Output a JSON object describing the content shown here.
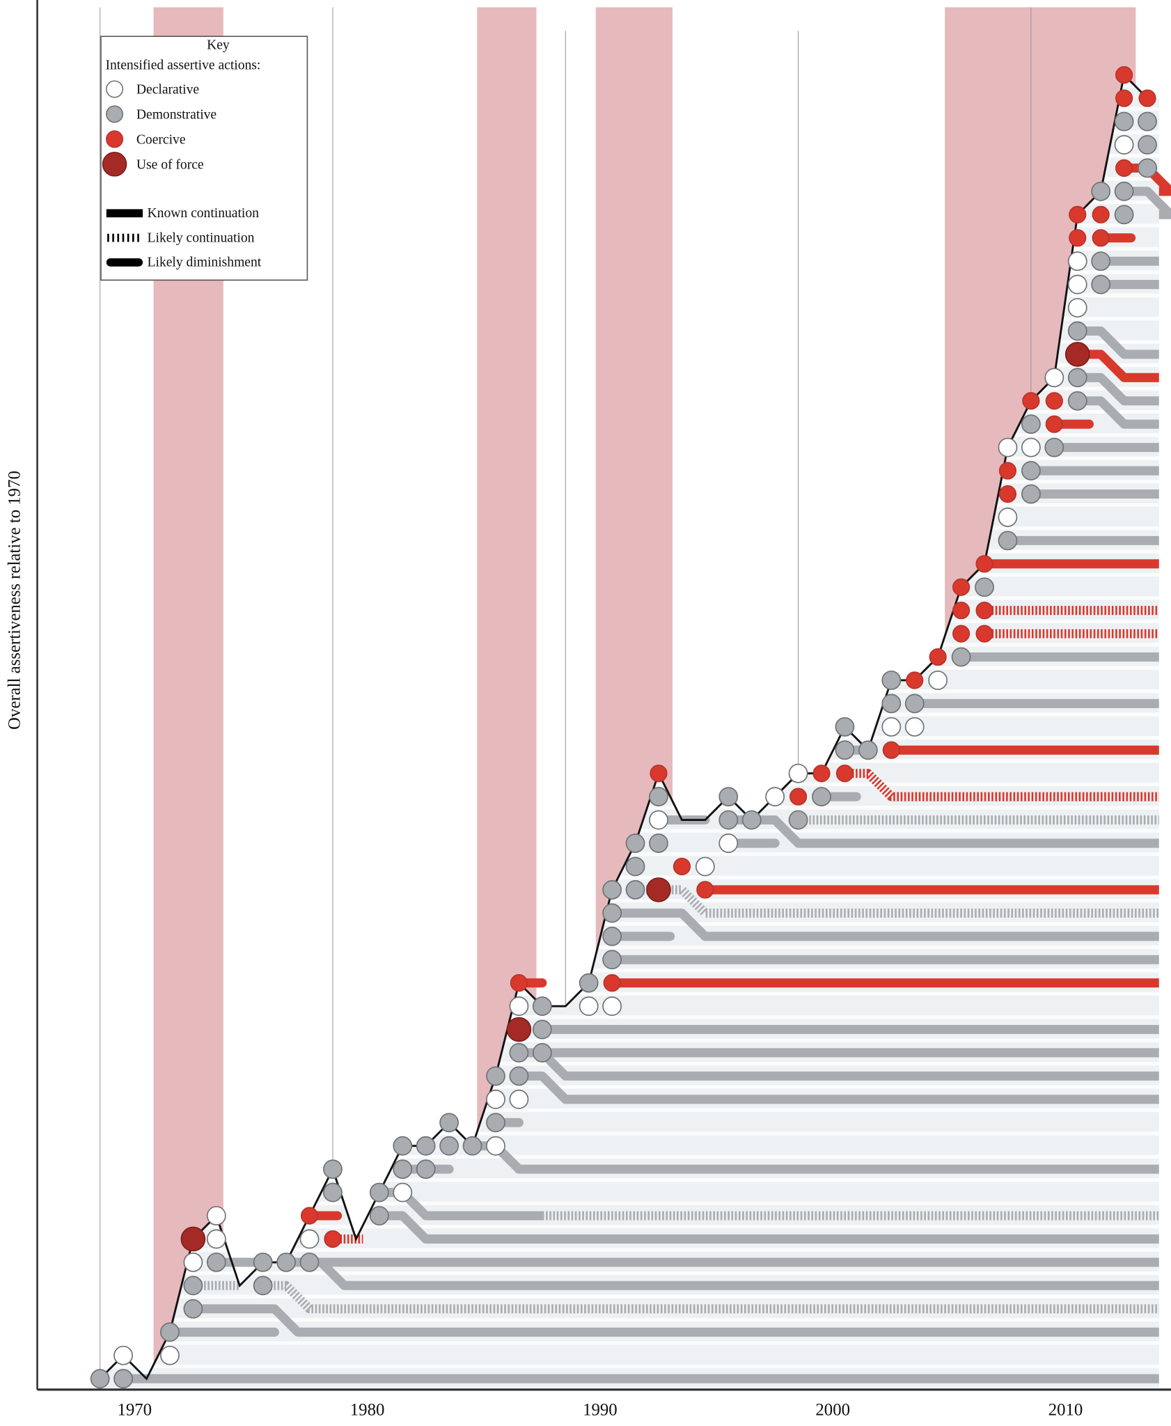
{
  "chart_data": {
    "type": "scatter",
    "title": "",
    "xlabel": "",
    "ylabel": "Overall assertiveness relative to 1970",
    "x_ticks": [
      1970,
      1980,
      1990,
      2000,
      2010
    ],
    "xlim": [
      1968.7,
      2015.6
    ],
    "ylim": [
      -0.5,
      57
    ],
    "shaded_periods": [
      [
        1972.3,
        1975.3
      ],
      [
        1986.2,
        1988.75
      ],
      [
        1991.3,
        1994.6
      ],
      [
        2006.3,
        2014.5
      ]
    ],
    "colors": {
      "shade": "#e6b9bc",
      "declarative": "#ffffff",
      "demonstrative": "#a9adb1",
      "coercive": "#d9392d",
      "force": "#a52a26",
      "area": "#eef1f3",
      "line": "#111111"
    },
    "legend": {
      "position": "top-left",
      "title": "Key",
      "subtitle": "Intensified assertive actions:",
      "markers": [
        {
          "type": "w",
          "label": "Declarative"
        },
        {
          "type": "g",
          "label": "Demonstrative"
        },
        {
          "type": "r",
          "label": "Coercive"
        },
        {
          "type": "f",
          "label": "Use of force"
        }
      ],
      "lines": [
        {
          "style": "k",
          "label": "Known continuation"
        },
        {
          "style": "l",
          "label": "Likely continuation"
        },
        {
          "style": "d",
          "label": "Likely diminishment"
        }
      ]
    },
    "line": [
      [
        1970,
        0
      ],
      [
        1971,
        1
      ],
      [
        1972,
        0
      ],
      [
        1973,
        2
      ],
      [
        1974,
        6
      ],
      [
        1975,
        7
      ],
      [
        1976,
        4
      ],
      [
        1977,
        5
      ],
      [
        1978,
        5
      ],
      [
        1979,
        7
      ],
      [
        1980,
        9
      ],
      [
        1981,
        6
      ],
      [
        1982,
        8
      ],
      [
        1983,
        10
      ],
      [
        1984,
        10
      ],
      [
        1985,
        11
      ],
      [
        1986,
        10
      ],
      [
        1987,
        13
      ],
      [
        1988,
        17
      ],
      [
        1989,
        16
      ],
      [
        1990,
        16
      ],
      [
        1991,
        17
      ],
      [
        1992,
        21
      ],
      [
        1993,
        23
      ],
      [
        1994,
        26
      ],
      [
        1995,
        24
      ],
      [
        1996,
        24
      ],
      [
        1997,
        25
      ],
      [
        1998,
        24
      ],
      [
        1999,
        25
      ],
      [
        2000,
        26
      ],
      [
        2001,
        26
      ],
      [
        2002,
        28
      ],
      [
        2003,
        27
      ],
      [
        2004,
        30
      ],
      [
        2005,
        30
      ],
      [
        2006,
        31
      ],
      [
        2007,
        34
      ],
      [
        2008,
        35
      ],
      [
        2009,
        40
      ],
      [
        2010,
        42
      ],
      [
        2011,
        43
      ],
      [
        2012,
        50
      ],
      [
        2013,
        51
      ],
      [
        2014,
        56
      ],
      [
        2015,
        55
      ]
    ],
    "events": [
      {
        "year": 1970,
        "dots": [
          [
            0,
            "g"
          ]
        ]
      },
      {
        "year": 1971,
        "dots": [
          [
            1,
            "w"
          ],
          [
            0,
            "g"
          ]
        ]
      },
      {
        "year": 1973,
        "dots": [
          [
            2,
            "g"
          ],
          [
            1,
            "w"
          ]
        ]
      },
      {
        "year": 1974,
        "dots": [
          [
            6,
            "f"
          ],
          [
            5,
            "w"
          ],
          [
            4,
            "g"
          ],
          [
            3,
            "g"
          ]
        ]
      },
      {
        "year": 1975,
        "dots": [
          [
            7,
            "w"
          ],
          [
            6,
            "w"
          ],
          [
            5,
            "g"
          ]
        ]
      },
      {
        "year": 1977,
        "dots": [
          [
            5,
            "g"
          ],
          [
            4,
            "g"
          ]
        ]
      },
      {
        "year": 1978,
        "dots": [
          [
            5,
            "g"
          ]
        ]
      },
      {
        "year": 1979,
        "dots": [
          [
            7,
            "r"
          ],
          [
            6,
            "w"
          ],
          [
            5,
            "g"
          ]
        ]
      },
      {
        "year": 1980,
        "dots": [
          [
            9,
            "g"
          ],
          [
            8,
            "g"
          ],
          [
            6,
            "r"
          ]
        ]
      },
      {
        "year": 1982,
        "dots": [
          [
            8,
            "g"
          ],
          [
            7,
            "g"
          ]
        ]
      },
      {
        "year": 1983,
        "dots": [
          [
            10,
            "g"
          ],
          [
            9,
            "g"
          ],
          [
            8,
            "w"
          ]
        ]
      },
      {
        "year": 1984,
        "dots": [
          [
            10,
            "g"
          ],
          [
            9,
            "g"
          ]
        ]
      },
      {
        "year": 1985,
        "dots": [
          [
            11,
            "g"
          ],
          [
            10,
            "g"
          ]
        ]
      },
      {
        "year": 1986,
        "dots": [
          [
            10,
            "g"
          ]
        ]
      },
      {
        "year": 1987,
        "dots": [
          [
            13,
            "g"
          ],
          [
            12,
            "w"
          ],
          [
            11,
            "g"
          ],
          [
            10,
            "w"
          ]
        ]
      },
      {
        "year": 1988,
        "dots": [
          [
            17,
            "r"
          ],
          [
            16,
            "w"
          ],
          [
            15,
            "f"
          ],
          [
            14,
            "g"
          ],
          [
            13,
            "g"
          ],
          [
            12,
            "w"
          ]
        ]
      },
      {
        "year": 1989,
        "dots": [
          [
            16,
            "g"
          ],
          [
            15,
            "g"
          ],
          [
            14,
            "g"
          ]
        ]
      },
      {
        "year": 1991,
        "dots": [
          [
            17,
            "g"
          ],
          [
            16,
            "w"
          ]
        ]
      },
      {
        "year": 1992,
        "dots": [
          [
            21,
            "g"
          ],
          [
            20,
            "g"
          ],
          [
            19,
            "g"
          ],
          [
            18,
            "g"
          ],
          [
            17,
            "r"
          ],
          [
            16,
            "w"
          ]
        ]
      },
      {
        "year": 1993,
        "dots": [
          [
            23,
            "g"
          ],
          [
            22,
            "g"
          ],
          [
            21,
            "g"
          ]
        ]
      },
      {
        "year": 1994,
        "dots": [
          [
            26,
            "r"
          ],
          [
            25,
            "g"
          ],
          [
            24,
            "w"
          ],
          [
            23,
            "g"
          ],
          [
            21,
            "f"
          ]
        ]
      },
      {
        "year": 1995,
        "dots": [
          [
            22,
            "r"
          ]
        ]
      },
      {
        "year": 1996,
        "dots": [
          [
            22,
            "w"
          ],
          [
            21,
            "r"
          ]
        ]
      },
      {
        "year": 1997,
        "dots": [
          [
            25,
            "g"
          ],
          [
            24,
            "g"
          ],
          [
            23,
            "w"
          ]
        ]
      },
      {
        "year": 1998,
        "dots": [
          [
            24,
            "g"
          ]
        ]
      },
      {
        "year": 1999,
        "dots": [
          [
            25,
            "w"
          ]
        ]
      },
      {
        "year": 2000,
        "dots": [
          [
            26,
            "w"
          ],
          [
            25,
            "r"
          ],
          [
            24,
            "g"
          ]
        ]
      },
      {
        "year": 2001,
        "dots": [
          [
            26,
            "r"
          ],
          [
            25,
            "g"
          ]
        ]
      },
      {
        "year": 2002,
        "dots": [
          [
            28,
            "g"
          ],
          [
            27,
            "g"
          ],
          [
            26,
            "r"
          ]
        ]
      },
      {
        "year": 2003,
        "dots": [
          [
            27,
            "g"
          ]
        ]
      },
      {
        "year": 2004,
        "dots": [
          [
            30,
            "g"
          ],
          [
            29,
            "g"
          ],
          [
            28,
            "w"
          ],
          [
            27,
            "r"
          ]
        ]
      },
      {
        "year": 2005,
        "dots": [
          [
            30,
            "r"
          ],
          [
            29,
            "g"
          ],
          [
            28,
            "w"
          ]
        ]
      },
      {
        "year": 2006,
        "dots": [
          [
            31,
            "r"
          ],
          [
            30,
            "w"
          ]
        ]
      },
      {
        "year": 2007,
        "dots": [
          [
            34,
            "r"
          ],
          [
            33,
            "r"
          ],
          [
            32,
            "r"
          ],
          [
            31,
            "g"
          ]
        ]
      },
      {
        "year": 2008,
        "dots": [
          [
            35,
            "r"
          ],
          [
            34,
            "g"
          ],
          [
            33,
            "r"
          ],
          [
            32,
            "r"
          ]
        ]
      },
      {
        "year": 2009,
        "dots": [
          [
            40,
            "w"
          ],
          [
            39,
            "r"
          ],
          [
            38,
            "r"
          ],
          [
            37,
            "w"
          ],
          [
            36,
            "g"
          ]
        ]
      },
      {
        "year": 2010,
        "dots": [
          [
            42,
            "r"
          ],
          [
            41,
            "g"
          ],
          [
            40,
            "w"
          ],
          [
            39,
            "g"
          ],
          [
            38,
            "g"
          ]
        ]
      },
      {
        "year": 2011,
        "dots": [
          [
            43,
            "w"
          ],
          [
            42,
            "r"
          ],
          [
            41,
            "r"
          ],
          [
            40,
            "g"
          ]
        ]
      },
      {
        "year": 2012,
        "dots": [
          [
            50,
            "r"
          ],
          [
            49,
            "r"
          ],
          [
            48,
            "w"
          ],
          [
            47,
            "w"
          ],
          [
            46,
            "w"
          ],
          [
            45,
            "g"
          ],
          [
            44,
            "f"
          ],
          [
            43,
            "g"
          ],
          [
            42,
            "g"
          ]
        ]
      },
      {
        "year": 2013,
        "dots": [
          [
            51,
            "g"
          ],
          [
            50,
            "r"
          ],
          [
            49,
            "r"
          ],
          [
            48,
            "g"
          ],
          [
            47,
            "g"
          ]
        ]
      },
      {
        "year": 2014,
        "dots": [
          [
            56,
            "r"
          ],
          [
            55,
            "r"
          ],
          [
            54,
            "g"
          ],
          [
            53,
            "w"
          ],
          [
            52,
            "r"
          ],
          [
            51,
            "g"
          ],
          [
            50,
            "g"
          ]
        ]
      },
      {
        "year": 2015,
        "dots": [
          [
            55,
            "r"
          ],
          [
            54,
            "g"
          ],
          [
            53,
            "g"
          ],
          [
            52,
            "g"
          ]
        ]
      }
    ],
    "continuations": [
      [
        1971,
        0,
        null,
        0,
        "k",
        "g",
        2015.5
      ],
      [
        1973,
        2,
        null,
        2,
        "d",
        "g",
        1977.5
      ],
      [
        1974,
        3,
        1977.5,
        2,
        "k",
        "g",
        2015.5
      ],
      [
        1974,
        4,
        null,
        4,
        "l",
        "g",
        1976
      ],
      [
        1977,
        4,
        1978,
        3,
        "l",
        "g",
        2015.5
      ],
      [
        1975,
        5,
        null,
        5,
        "k",
        "g",
        1977
      ],
      [
        1979,
        5,
        1979.5,
        4,
        "k",
        "g",
        2015.5
      ],
      [
        1978,
        5,
        null,
        5,
        "k",
        "g",
        2015.5
      ],
      [
        1979,
        7,
        null,
        7,
        "d",
        "r",
        1980.2
      ],
      [
        1980,
        6,
        null,
        6,
        "l",
        "r",
        1981.3
      ],
      [
        1982,
        8,
        1983,
        7,
        "k",
        "g",
        1989
      ],
      [
        1989,
        7,
        null,
        7,
        "l",
        "g",
        2015.5
      ],
      [
        1982,
        7,
        1983,
        6,
        "k",
        "g",
        2015.5
      ],
      [
        1983,
        9,
        null,
        9,
        "d",
        "g",
        1985
      ],
      [
        1986,
        10,
        1987,
        9,
        "k",
        "g",
        2015.5
      ],
      [
        1987,
        11,
        null,
        11,
        "d",
        "g",
        1988
      ],
      [
        1988,
        13,
        1989,
        12,
        "k",
        "g",
        2015.5
      ],
      [
        1988,
        14,
        1989,
        13,
        "k",
        "g",
        2015.5
      ],
      [
        1989,
        14,
        null,
        14,
        "k",
        "g",
        2015.5
      ],
      [
        1989,
        15,
        null,
        15,
        "k",
        "g",
        2015.5
      ],
      [
        1988,
        17,
        null,
        17,
        "d",
        "r",
        1989
      ],
      [
        1992,
        17,
        null,
        17,
        "k",
        "r",
        2015.5
      ],
      [
        1992,
        18,
        null,
        18,
        "k",
        "g",
        2015.5
      ],
      [
        1992,
        19,
        null,
        19,
        "d",
        "g",
        1994.5
      ],
      [
        1992,
        20,
        1995,
        19,
        "k",
        "g",
        2015.5
      ],
      [
        1993,
        21,
        1995,
        20,
        "l",
        "g",
        2015.5
      ],
      [
        1996,
        21,
        null,
        21,
        "k",
        "r",
        2015.5
      ],
      [
        1994,
        24,
        null,
        24,
        "d",
        "g",
        1996
      ],
      [
        1997,
        23,
        null,
        23,
        "d",
        "g",
        1999
      ],
      [
        1997,
        24,
        1999,
        23,
        "k",
        "g",
        2015.5
      ],
      [
        2000,
        24,
        null,
        24,
        "l",
        "g",
        2015.5
      ],
      [
        2001,
        25,
        null,
        25,
        "d",
        "g",
        2002.5
      ],
      [
        2002,
        26,
        2003,
        25,
        "l",
        "r",
        2015.5
      ],
      [
        2002,
        27,
        null,
        27,
        "d",
        "g",
        2003
      ],
      [
        2004,
        27,
        null,
        27,
        "k",
        "r",
        2015.5
      ],
      [
        2005,
        29,
        null,
        29,
        "k",
        "g",
        2015.5
      ],
      [
        2007,
        31,
        null,
        31,
        "k",
        "g",
        2015.5
      ],
      [
        2008,
        32,
        null,
        32,
        "l",
        "r",
        2015.5
      ],
      [
        2008,
        33,
        null,
        33,
        "l",
        "r",
        2015.5
      ],
      [
        2008,
        35,
        null,
        35,
        "k",
        "r",
        2015.5
      ],
      [
        2009,
        36,
        null,
        36,
        "k",
        "g",
        2015.5
      ],
      [
        2010,
        38,
        null,
        38,
        "k",
        "g",
        2015.5
      ],
      [
        2010,
        39,
        null,
        39,
        "k",
        "g",
        2015.5
      ],
      [
        2011,
        40,
        null,
        40,
        "k",
        "g",
        2015.5
      ],
      [
        2011,
        41,
        null,
        41,
        "d",
        "r",
        2012.5
      ],
      [
        2012,
        42,
        2013,
        41,
        "k",
        "g",
        2015.5
      ],
      [
        2012,
        43,
        2013,
        42,
        "k",
        "g",
        2015.5
      ],
      [
        2012,
        44,
        2013,
        43,
        "k",
        "r",
        2015.5
      ],
      [
        2012,
        45,
        2013,
        44,
        "k",
        "g",
        2015.5
      ],
      [
        2013,
        47,
        null,
        47,
        "k",
        "g",
        2015.5
      ],
      [
        2013,
        48,
        null,
        48,
        "k",
        "g",
        2015.5
      ],
      [
        2013,
        49,
        null,
        49,
        "d",
        "r",
        2014.3
      ],
      [
        2014,
        51,
        2015,
        50,
        "k",
        "g",
        2015.5
      ],
      [
        2014,
        52,
        2015,
        51,
        "k",
        "r",
        2015.5
      ]
    ]
  }
}
